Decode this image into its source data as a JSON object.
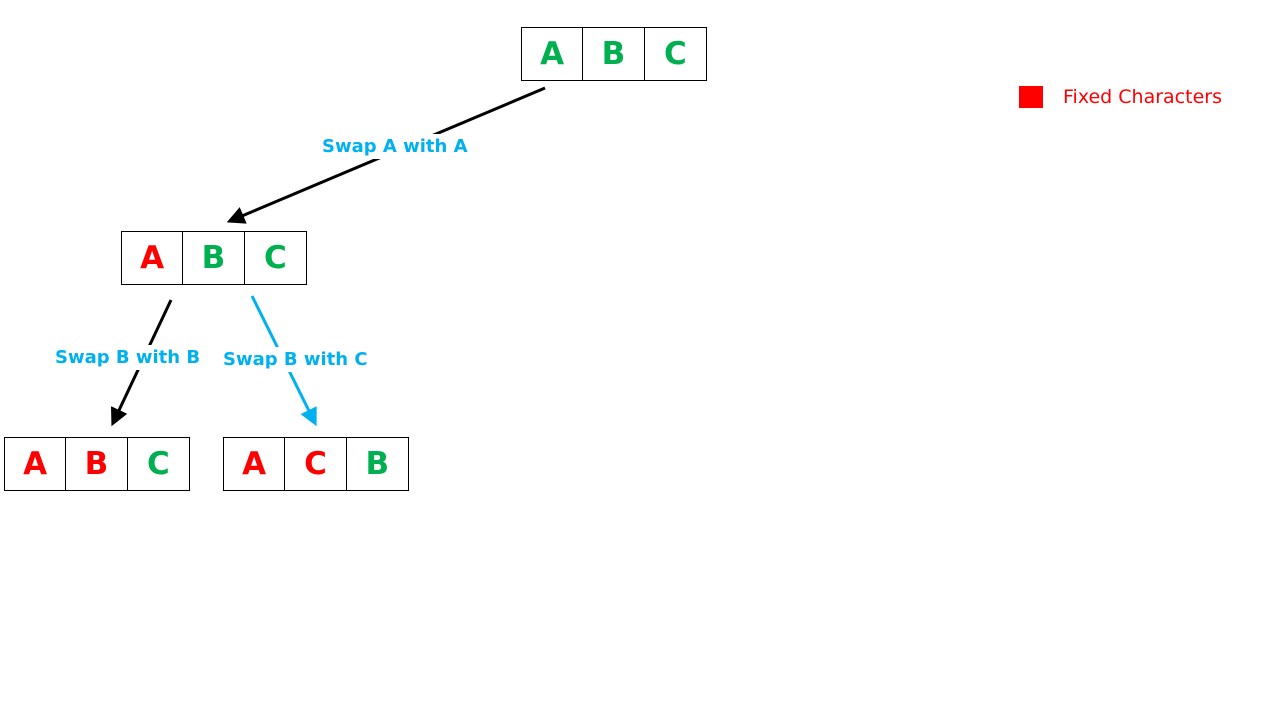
{
  "colors": {
    "fixed": "#ff0000",
    "free": "#00b050",
    "swap_label": "#00b0f0",
    "arrow_default": "#000000"
  },
  "nodes": {
    "root": {
      "cells": [
        {
          "char": "A",
          "state": "free"
        },
        {
          "char": "B",
          "state": "free"
        },
        {
          "char": "C",
          "state": "free"
        }
      ]
    },
    "level1": {
      "cells": [
        {
          "char": "A",
          "state": "fixed"
        },
        {
          "char": "B",
          "state": "free"
        },
        {
          "char": "C",
          "state": "free"
        }
      ]
    },
    "leaf1": {
      "cells": [
        {
          "char": "A",
          "state": "fixed"
        },
        {
          "char": "B",
          "state": "fixed"
        },
        {
          "char": "C",
          "state": "free"
        }
      ]
    },
    "leaf2": {
      "cells": [
        {
          "char": "A",
          "state": "fixed"
        },
        {
          "char": "C",
          "state": "fixed"
        },
        {
          "char": "B",
          "state": "free"
        }
      ]
    }
  },
  "edges": {
    "root_to_level1": {
      "label": "Swap A with A",
      "arrow_color": "#000000"
    },
    "level1_to_leaf1": {
      "label": "Swap B with B",
      "arrow_color": "#000000"
    },
    "level1_to_leaf2": {
      "label": "Swap B with C",
      "arrow_color": "#00b0f0"
    }
  },
  "legend": {
    "label": "Fixed Characters",
    "color": "#ff0000"
  }
}
